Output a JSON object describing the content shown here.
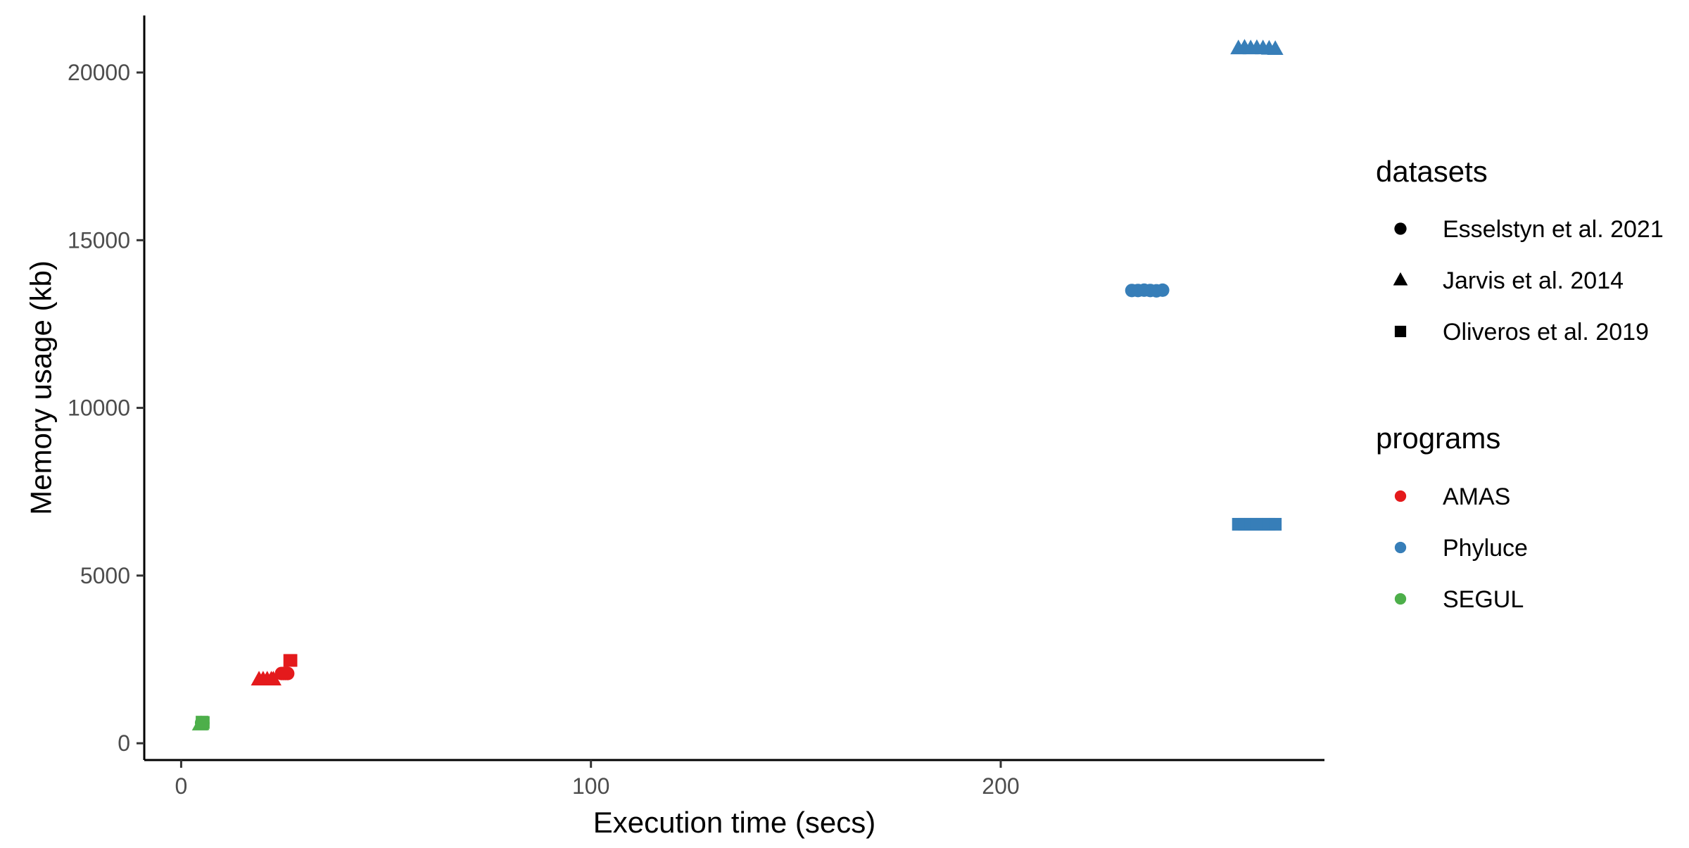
{
  "chart_data": {
    "type": "scatter",
    "title": "",
    "xlabel": "Execution time (secs)",
    "ylabel": "Memory usage (kb)",
    "xlim": [
      -9,
      279
    ],
    "ylim": [
      -500,
      21700
    ],
    "x_ticks": [
      0,
      100,
      200
    ],
    "y_ticks": [
      0,
      5000,
      10000,
      15000,
      20000
    ],
    "grid": false,
    "legend_position": "right",
    "colors": {
      "AMAS": "#E41A1C",
      "Phyluce": "#377EB8",
      "SEGUL": "#4DAF4A"
    },
    "shapes": {
      "Esselstyn et al. 2021": "circle",
      "Jarvis et al. 2014": "triangle",
      "Oliveros et al. 2019": "square"
    },
    "legends": [
      {
        "title": "datasets",
        "entries": [
          "Esselstyn et al. 2021",
          "Jarvis et al. 2014",
          "Oliveros et al. 2019"
        ]
      },
      {
        "title": "programs",
        "entries": [
          "AMAS",
          "Phyluce",
          "SEGUL"
        ]
      }
    ],
    "points": [
      {
        "program": "SEGUL",
        "dataset": "Esselstyn et al. 2021",
        "x": 5,
        "y": 610
      },
      {
        "program": "SEGUL",
        "dataset": "Esselstyn et al. 2021",
        "x": 5.3,
        "y": 600
      },
      {
        "program": "SEGUL",
        "dataset": "Jarvis et al. 2014",
        "x": 4.6,
        "y": 560
      },
      {
        "program": "SEGUL",
        "dataset": "Jarvis et al. 2014",
        "x": 4.9,
        "y": 570
      },
      {
        "program": "SEGUL",
        "dataset": "Oliveros et al. 2019",
        "x": 5.1,
        "y": 630
      },
      {
        "program": "SEGUL",
        "dataset": "Oliveros et al. 2019",
        "x": 5.4,
        "y": 620
      },
      {
        "program": "AMAS",
        "dataset": "Jarvis et al. 2014",
        "x": 19,
        "y": 1900
      },
      {
        "program": "AMAS",
        "dataset": "Jarvis et al. 2014",
        "x": 20,
        "y": 1900
      },
      {
        "program": "AMAS",
        "dataset": "Jarvis et al. 2014",
        "x": 21,
        "y": 1900
      },
      {
        "program": "AMAS",
        "dataset": "Jarvis et al. 2014",
        "x": 22,
        "y": 1900
      },
      {
        "program": "AMAS",
        "dataset": "Jarvis et al. 2014",
        "x": 22.5,
        "y": 1900
      },
      {
        "program": "AMAS",
        "dataset": "Esselstyn et al. 2021",
        "x": 24.5,
        "y": 2080
      },
      {
        "program": "AMAS",
        "dataset": "Esselstyn et al. 2021",
        "x": 25,
        "y": 2080
      },
      {
        "program": "AMAS",
        "dataset": "Esselstyn et al. 2021",
        "x": 25.5,
        "y": 2080
      },
      {
        "program": "AMAS",
        "dataset": "Esselstyn et al. 2021",
        "x": 26,
        "y": 2080
      },
      {
        "program": "AMAS",
        "dataset": "Oliveros et al. 2019",
        "x": 26.5,
        "y": 2470
      },
      {
        "program": "AMAS",
        "dataset": "Oliveros et al. 2019",
        "x": 26.8,
        "y": 2470
      },
      {
        "program": "Phyluce",
        "dataset": "Esselstyn et al. 2021",
        "x": 232,
        "y": 13500
      },
      {
        "program": "Phyluce",
        "dataset": "Esselstyn et al. 2021",
        "x": 233.5,
        "y": 13500
      },
      {
        "program": "Phyluce",
        "dataset": "Esselstyn et al. 2021",
        "x": 235,
        "y": 13510
      },
      {
        "program": "Phyluce",
        "dataset": "Esselstyn et al. 2021",
        "x": 236.5,
        "y": 13500
      },
      {
        "program": "Phyluce",
        "dataset": "Esselstyn et al. 2021",
        "x": 238,
        "y": 13490
      },
      {
        "program": "Phyluce",
        "dataset": "Esselstyn et al. 2021",
        "x": 239.5,
        "y": 13510
      },
      {
        "program": "Phyluce",
        "dataset": "Oliveros et al. 2019",
        "x": 258,
        "y": 6530
      },
      {
        "program": "Phyluce",
        "dataset": "Oliveros et al. 2019",
        "x": 259.5,
        "y": 6530
      },
      {
        "program": "Phyluce",
        "dataset": "Oliveros et al. 2019",
        "x": 261,
        "y": 6530
      },
      {
        "program": "Phyluce",
        "dataset": "Oliveros et al. 2019",
        "x": 262.5,
        "y": 6530
      },
      {
        "program": "Phyluce",
        "dataset": "Oliveros et al. 2019",
        "x": 264,
        "y": 6530
      },
      {
        "program": "Phyluce",
        "dataset": "Oliveros et al. 2019",
        "x": 265.5,
        "y": 6530
      },
      {
        "program": "Phyluce",
        "dataset": "Oliveros et al. 2019",
        "x": 267,
        "y": 6530
      },
      {
        "program": "Phyluce",
        "dataset": "Jarvis et al. 2014",
        "x": 258,
        "y": 20720
      },
      {
        "program": "Phyluce",
        "dataset": "Jarvis et al. 2014",
        "x": 259.5,
        "y": 20740
      },
      {
        "program": "Phyluce",
        "dataset": "Jarvis et al. 2014",
        "x": 261,
        "y": 20720
      },
      {
        "program": "Phyluce",
        "dataset": "Jarvis et al. 2014",
        "x": 262.5,
        "y": 20730
      },
      {
        "program": "Phyluce",
        "dataset": "Jarvis et al. 2014",
        "x": 264,
        "y": 20720
      },
      {
        "program": "Phyluce",
        "dataset": "Jarvis et al. 2014",
        "x": 265.5,
        "y": 20710
      },
      {
        "program": "Phyluce",
        "dataset": "Jarvis et al. 2014",
        "x": 267,
        "y": 20700
      }
    ]
  }
}
